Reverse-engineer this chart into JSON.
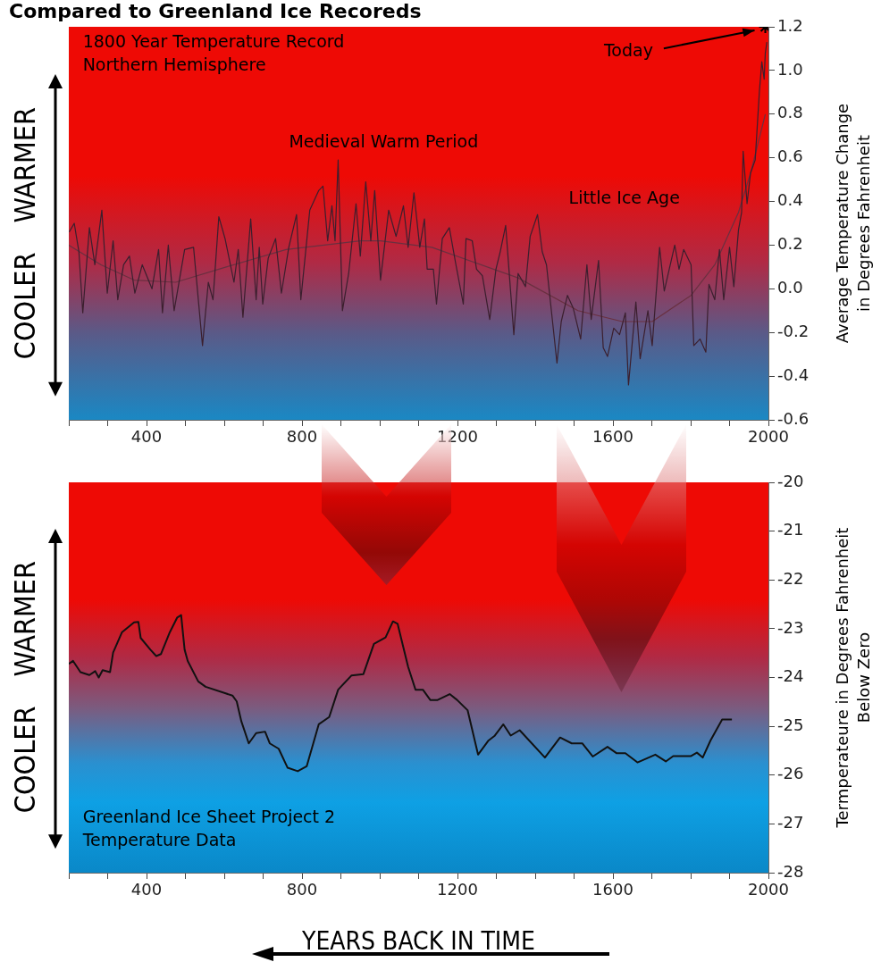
{
  "chart_data": [
    {
      "type": "line",
      "title": "Compared to Greenland Ice Recoreds",
      "ylabel": "Average Temperature Change\nin Degrees Fahrenheit",
      "marker": "none",
      "xlim": [
        200,
        2000
      ],
      "xticks": [
        {
          "value": 200,
          "label": null
        },
        {
          "value": 300,
          "label": null
        },
        400,
        {
          "value": 500,
          "label": null
        },
        {
          "value": 600,
          "label": null
        },
        {
          "value": 700,
          "label": null
        },
        800,
        {
          "value": 900,
          "label": null
        },
        {
          "value": 1000,
          "label": null
        },
        {
          "value": 1100,
          "label": null
        },
        1200,
        {
          "value": 1300,
          "label": null
        },
        {
          "value": 1400,
          "label": null
        },
        {
          "value": 1500,
          "label": null
        },
        1600,
        {
          "value": 1700,
          "label": null
        },
        {
          "value": 1800,
          "label": null
        },
        {
          "value": 1900,
          "label": null
        },
        2000
      ],
      "ylim": [
        -0.6,
        1.2
      ],
      "yticks": [
        -0.6,
        -0.4,
        -0.2,
        {
          "value": 0,
          "label": "0.0"
        },
        0.2,
        0.4,
        0.6,
        0.8,
        {
          "value": 1,
          "label": "1.0"
        },
        1.2
      ],
      "series": [
        {
          "color": "#3b1f2e",
          "x": [
            201,
            214,
            226,
            236,
            253,
            267,
            285,
            299,
            314,
            326,
            341,
            356,
            370,
            389,
            414,
            431,
            441,
            456,
            471,
            498,
            521,
            544,
            559,
            571,
            586,
            602,
            625,
            636,
            648,
            668,
            682,
            690,
            699,
            713,
            732,
            747,
            766,
            786,
            797,
            820,
            843,
            854,
            866,
            877,
            885,
            893,
            904,
            920,
            939,
            950,
            964,
            977,
            987,
            1002,
            1023,
            1042,
            1061,
            1073,
            1088,
            1103,
            1115,
            1122,
            1138,
            1146,
            1161,
            1179,
            1195,
            1215,
            1222,
            1238,
            1249,
            1264,
            1283,
            1299,
            1310,
            1324,
            1345,
            1356,
            1375,
            1387,
            1406,
            1418,
            1429,
            1456,
            1467,
            1483,
            1498,
            1517,
            1533,
            1544,
            1563,
            1575,
            1586,
            1602,
            1617,
            1632,
            1640,
            1659,
            1670,
            1690,
            1701,
            1720,
            1732,
            1759,
            1770,
            1782,
            1801,
            1808,
            1824,
            1839,
            1847,
            1862,
            1874,
            1885,
            1900,
            1911,
            1923,
            1931,
            1935,
            1945,
            1954,
            1966,
            1977,
            1983,
            1989,
            1992,
            1996
          ],
          "values": [
            0.26,
            0.3,
            0.17,
            -0.11,
            0.28,
            0.11,
            0.36,
            -0.02,
            0.22,
            -0.05,
            0.11,
            0.15,
            -0.02,
            0.11,
            0.0,
            0.18,
            -0.11,
            0.2,
            -0.1,
            0.18,
            0.19,
            -0.26,
            0.03,
            -0.05,
            0.33,
            0.23,
            0.03,
            0.18,
            -0.13,
            0.32,
            -0.05,
            0.19,
            -0.07,
            0.14,
            0.23,
            -0.02,
            0.19,
            0.34,
            -0.05,
            0.36,
            0.45,
            0.47,
            0.22,
            0.38,
            0.22,
            0.59,
            -0.1,
            0.07,
            0.39,
            0.15,
            0.49,
            0.22,
            0.45,
            0.04,
            0.36,
            0.24,
            0.38,
            0.19,
            0.44,
            0.19,
            0.32,
            0.09,
            0.09,
            -0.07,
            0.23,
            0.28,
            0.12,
            -0.07,
            0.23,
            0.22,
            0.09,
            0.06,
            -0.14,
            0.09,
            0.17,
            0.29,
            -0.21,
            0.07,
            0.01,
            0.24,
            0.34,
            0.17,
            0.11,
            -0.34,
            -0.15,
            -0.03,
            -0.09,
            -0.23,
            0.11,
            -0.14,
            0.13,
            -0.27,
            -0.31,
            -0.18,
            -0.21,
            -0.11,
            -0.44,
            -0.06,
            -0.32,
            -0.1,
            -0.26,
            0.19,
            -0.01,
            0.2,
            0.09,
            0.18,
            0.11,
            -0.26,
            -0.23,
            -0.29,
            0.02,
            -0.05,
            0.18,
            -0.05,
            0.19,
            0.01,
            0.27,
            0.35,
            0.63,
            0.39,
            0.53,
            0.59,
            0.91,
            1.04,
            0.96,
            1.08,
            1.13
          ]
        },
        {
          "color": "#6a3040",
          "x": [
            200,
            283,
            368,
            475,
            605,
            759,
            950,
            1002,
            1134,
            1356,
            1510,
            1624,
            1701,
            1801,
            1862,
            1923,
            1954,
            1992
          ],
          "values": [
            0.2,
            0.11,
            0.04,
            0.03,
            0.1,
            0.18,
            0.22,
            0.22,
            0.19,
            0.05,
            -0.1,
            -0.15,
            -0.15,
            -0.03,
            0.11,
            0.35,
            0.53,
            0.8
          ]
        },
        {
          "type": "scatter",
          "marker": "cross",
          "color": "#000000",
          "x": [
            1992
          ],
          "values": [
            1.2
          ]
        }
      ],
      "annotations": [
        "COOLER WARMER",
        "1800 Year Temperature Record\nNorthern Hemisphere",
        "Medieval Warm Period",
        "Little Ice Age",
        "Today"
      ]
    },
    {
      "type": "line",
      "ylabel": "Termperateure in Degrees Fahrenheit\nBelow Zero",
      "xlabel": "YEARS BACK IN TIME",
      "marker": "none",
      "xlim": [
        200,
        2000
      ],
      "xticks": [
        {
          "value": 200,
          "label": null
        },
        {
          "value": 300,
          "label": null
        },
        400,
        {
          "value": 500,
          "label": null
        },
        {
          "value": 600,
          "label": null
        },
        {
          "value": 700,
          "label": null
        },
        800,
        {
          "value": 900,
          "label": null
        },
        {
          "value": 1000,
          "label": null
        },
        {
          "value": 1100,
          "label": null
        },
        1200,
        {
          "value": 1300,
          "label": null
        },
        {
          "value": 1400,
          "label": null
        },
        {
          "value": 1500,
          "label": null
        },
        1600,
        {
          "value": 1700,
          "label": null
        },
        {
          "value": 1800,
          "label": null
        },
        {
          "value": 1900,
          "label": null
        },
        2000
      ],
      "ylim": [
        -28,
        -20
      ],
      "yticks": [
        -28,
        -27,
        -26,
        -25,
        -24,
        -23,
        -22,
        -21,
        -20
      ],
      "series": [
        {
          "color": "#111111",
          "x": [
            200,
            211,
            230,
            253,
            268,
            277,
            287,
            306,
            314,
            337,
            368,
            379,
            385,
            410,
            425,
            437,
            460,
            479,
            489,
            498,
            506,
            533,
            552,
            621,
            632,
            644,
            663,
            682,
            705,
            717,
            740,
            763,
            789,
            812,
            843,
            870,
            893,
            927,
            958,
            985,
            1015,
            1034,
            1046,
            1073,
            1092,
            1111,
            1130,
            1149,
            1180,
            1199,
            1226,
            1253,
            1280,
            1295,
            1318,
            1337,
            1360,
            1425,
            1464,
            1494,
            1521,
            1548,
            1586,
            1609,
            1632,
            1663,
            1709,
            1736,
            1755,
            1801,
            1816,
            1831,
            1851,
            1881,
            1906
          ],
          "values": [
            -23.72,
            -23.66,
            -23.89,
            -23.95,
            -23.87,
            -24.0,
            -23.85,
            -23.89,
            -23.49,
            -23.07,
            -22.87,
            -22.86,
            -23.19,
            -23.43,
            -23.56,
            -23.52,
            -23.07,
            -22.77,
            -22.72,
            -23.43,
            -23.66,
            -24.08,
            -24.19,
            -24.37,
            -24.49,
            -24.9,
            -25.35,
            -25.14,
            -25.11,
            -25.35,
            -25.46,
            -25.85,
            -25.92,
            -25.82,
            -24.96,
            -24.81,
            -24.25,
            -23.96,
            -23.93,
            -23.31,
            -23.18,
            -22.85,
            -22.9,
            -23.78,
            -24.25,
            -24.25,
            -24.46,
            -24.46,
            -24.34,
            -24.46,
            -24.67,
            -25.58,
            -25.29,
            -25.2,
            -24.96,
            -25.19,
            -25.08,
            -25.64,
            -25.23,
            -25.35,
            -25.35,
            -25.62,
            -25.42,
            -25.55,
            -25.55,
            -25.74,
            -25.58,
            -25.72,
            -25.61,
            -25.61,
            -25.54,
            -25.64,
            -25.29,
            -24.86,
            -24.86
          ]
        }
      ],
      "annotations": [
        "COOLER WARMER",
        "Greenland Ice Sheet Project 2\nTemperature Data"
      ]
    }
  ]
}
